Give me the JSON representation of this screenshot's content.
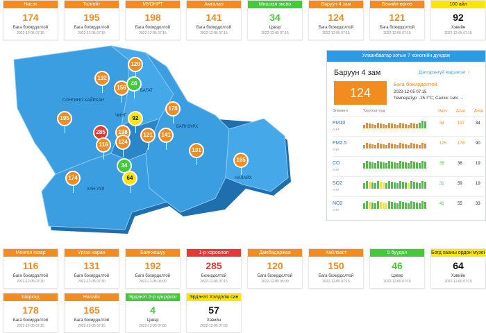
{
  "cards": [
    {
      "name": "Нисэх",
      "value": "174",
      "status": "Бага бохирдолтой",
      "time": "2022-12-05 07:15",
      "color": "orange"
    },
    {
      "name": "Толгойт",
      "value": "195",
      "status": "Бага бохирдолтой",
      "time": "2022-12-05 07:15",
      "color": "orange"
    },
    {
      "name": "МУОНРТ",
      "value": "198",
      "status": "Бага бохирдолтой",
      "time": "2022-12-05 07:15",
      "color": "orange"
    },
    {
      "name": "Амгалан",
      "value": "141",
      "status": "Бага бохирдолтой",
      "time": "2022-12-05 07:15",
      "color": "orange"
    },
    {
      "name": "Мишээл экспо",
      "value": "34",
      "status": "Цэвэр",
      "time": "2022-12-05 07:15",
      "color": "green"
    },
    {
      "name": "Баруун 4 зам",
      "value": "124",
      "status": "Бага бохирдолтой",
      "time": "2022-12-05 07:15",
      "color": "orange"
    },
    {
      "name": "Бөхийн өргөө",
      "value": "121",
      "status": "Бага бохирдолтой",
      "time": "2022-12-05 07:15",
      "color": "orange"
    },
    {
      "name": "100 айл",
      "value": "92",
      "status": "Хэвийн",
      "time": "2022-12-05 07:15",
      "color": "yellow"
    },
    {
      "name": "Монгол газар",
      "value": "116",
      "status": "Бага бохирдолтой",
      "time": "2022-12-05 07:30",
      "color": "orange"
    },
    {
      "name": "Ургах наран",
      "value": "131",
      "status": "Бага бохирдолтой",
      "time": "2022-12-05 07:30",
      "color": "orange"
    },
    {
      "name": "Баянхошуу",
      "value": "192",
      "status": "Бага бохирдолтой",
      "time": "2022-12-05 06:00",
      "color": "orange"
    },
    {
      "name": "1-р хороолол",
      "value": "285",
      "status": "Бохирдолтой",
      "time": "2022-12-05 07:15",
      "color": "red"
    },
    {
      "name": "Дамбадаржаа",
      "value": "120",
      "status": "Бага бохирдолтой",
      "time": "2022-12-05 06:00",
      "color": "orange"
    },
    {
      "name": "Хайлааст",
      "value": "150",
      "status": "Бага бохирдолтой",
      "time": "2022-12-05 07:15",
      "color": "orange"
    },
    {
      "name": "5 буудал",
      "value": "46",
      "status": "Цэвэр",
      "time": "2022-12-05 07:15",
      "color": "green"
    },
    {
      "name": "Богд хааны ордон музей",
      "value": "64",
      "status": "Хэвийн",
      "time": "2022-12-05 07:15",
      "color": "yellow"
    },
    {
      "name": "Шархад",
      "value": "178",
      "status": "Бага бохирдолтой",
      "time": "2022-12-05 07:15",
      "color": "orange"
    },
    {
      "name": "Налайх",
      "value": "165",
      "status": "Бага бохирдолтой",
      "time": "2022-12-05 07:15",
      "color": "orange"
    },
    {
      "name": "Эрдэнэт 2-р цэцэрлэг",
      "value": "4",
      "status": "Цэвэр",
      "time": "2022-12-05 07:00",
      "color": "green"
    },
    {
      "name": "Эрдэнэт Хэлдэлж сан",
      "value": "57",
      "status": "Хэвийн",
      "time": "2022-12-05 07:00",
      "color": "yellow"
    }
  ],
  "map": {
    "districts": {
      "songino": "СОНГИНО ХАЙРХАН",
      "bayanzurkh": "БАЯНЗҮРХ",
      "khanuul": "ХАН УУЛ",
      "nalaikh": "НАЛАЙХ",
      "chingeltei": "ЧИНГ",
      "bagakhangai": "БАГАТ"
    },
    "pins": [
      "192",
      "120",
      "156",
      "46",
      "92",
      "178",
      "195",
      "285",
      "198",
      "124",
      "121",
      "141",
      "116",
      "131",
      "165",
      "174",
      "34",
      "64"
    ],
    "colors": {
      "orange": "#f28c1e",
      "red": "#e53935",
      "green": "#43c93a",
      "yellow": "#ffe600",
      "map_fill": "#3a9ee0",
      "map_dark": "#2a86c9"
    }
  },
  "panel": {
    "header": "Улаанбаатар хотын 7 хоногийн дундаж",
    "station": "Баруун 4 зам",
    "link": "Дэлгэрэнгүй мэдээлэл",
    "aqi": "124",
    "status": "Бага бохирдолтой",
    "time": "2022-12-05 07:15",
    "temp": "Температур: -25.7°C; Салхи: 1м/с",
    "arrow": "→",
    "columns": {
      "element": "Элемент",
      "trend": "Үзүүлэлтүүд",
      "now": "Одоо",
      "max": "Дээд",
      "min": "Доод"
    },
    "pollutants": [
      {
        "name": "PM10",
        "unit": "АНИ",
        "now": "34",
        "max": "137",
        "min": "34",
        "bars": [
          "o",
          "o",
          "o",
          "o",
          "o",
          "o",
          "o",
          "o",
          "o",
          "o",
          "o",
          "o",
          "o",
          "o",
          "o",
          "o",
          "o",
          "o",
          "o",
          "o",
          "g",
          "g",
          "g"
        ]
      },
      {
        "name": "PM2.5",
        "unit": "АНИ",
        "now": "125",
        "max": "178",
        "min": "90",
        "bars": [
          "o",
          "o",
          "o",
          "o",
          "o",
          "o",
          "o",
          "o",
          "o",
          "o",
          "o",
          "o",
          "o",
          "o",
          "o",
          "o",
          "o",
          "o",
          "o",
          "o",
          "o",
          "o",
          "o"
        ]
      },
      {
        "name": "CO",
        "unit": "АНИ",
        "now": "35",
        "max": "38",
        "min": "19",
        "bars": [
          "g",
          "g",
          "g",
          "g",
          "g",
          "g",
          "g",
          "g",
          "g",
          "g",
          "g",
          "g",
          "g",
          "g",
          "g",
          "g",
          "g",
          "g",
          "g",
          "g",
          "g",
          "g",
          "g"
        ]
      },
      {
        "name": "SO2",
        "unit": "АНИ",
        "now": "31",
        "max": "59",
        "min": "19",
        "bars": [
          "g",
          "g",
          "y",
          "g",
          "g",
          "g",
          "y",
          "y",
          "g",
          "g",
          "g",
          "g",
          "g",
          "g",
          "g",
          "g",
          "y",
          "g",
          "g",
          "g",
          "g",
          "g",
          "g"
        ]
      },
      {
        "name": "NO2",
        "unit": "АНИ",
        "now": "41",
        "max": "55",
        "min": "33",
        "bars": [
          "g",
          "g",
          "y",
          "g",
          "g",
          "g",
          "y",
          "y",
          "y",
          "g",
          "g",
          "g",
          "g",
          "g",
          "g",
          "g",
          "g",
          "g",
          "g",
          "g",
          "g",
          "g",
          "g"
        ]
      }
    ]
  }
}
